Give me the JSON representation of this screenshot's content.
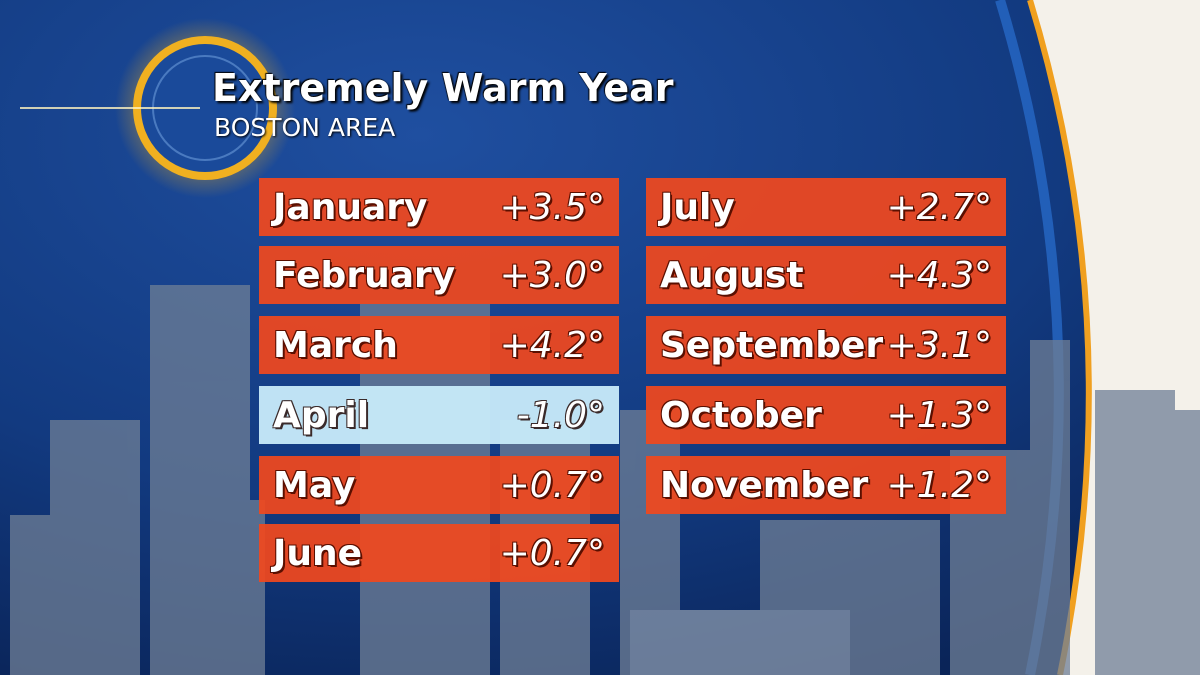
{
  "header": {
    "title": "Extremely Warm Year",
    "subtitle": "BOSTON AREA"
  },
  "table": {
    "rows": [
      [
        "January",
        "+3.5°"
      ],
      [
        "February",
        "+3.0°"
      ],
      [
        "March",
        "+4.2°"
      ],
      [
        "April",
        "-1.0°"
      ],
      [
        "May",
        "+0.7°"
      ],
      [
        "June",
        "+0.7°"
      ],
      [
        "July",
        "+2.7°"
      ],
      [
        "August",
        "+4.3°"
      ],
      [
        "September",
        "+3.1°"
      ],
      [
        "October",
        "+1.3°"
      ],
      [
        "November",
        "+1.2°"
      ]
    ]
  }
}
